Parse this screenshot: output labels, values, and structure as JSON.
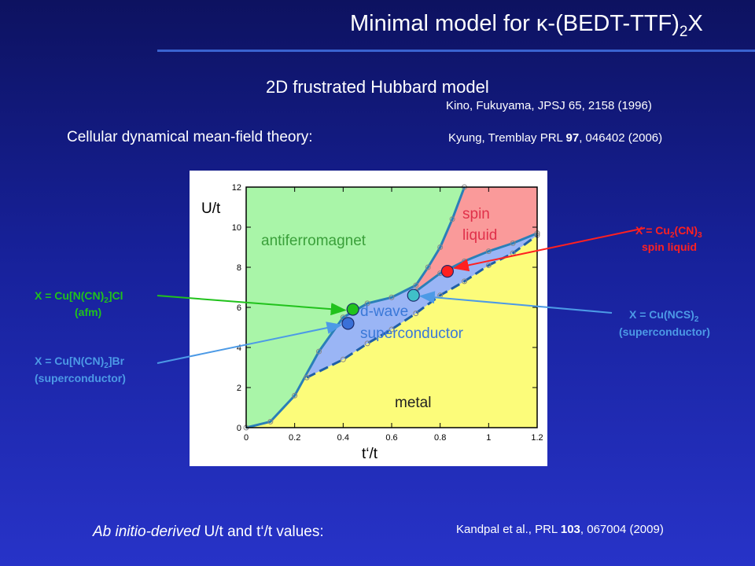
{
  "title": {
    "prefix": "Minimal model for ",
    "kappa": "κ",
    "mid": "-(BEDT-TTF)",
    "sub": "2",
    "suffix": "X"
  },
  "subtitle": "2D frustrated Hubbard model",
  "refs": {
    "kino": "Kino, Fukuyama, JPSJ 65, 2158 (1996)",
    "kyung_pre": "Kyung, Tremblay  PRL ",
    "kyung_vol": "97",
    "kyung_post": ", 046402 (2006)",
    "kandpal_pre": "Kandpal et al., PRL ",
    "kandpal_vol": "103",
    "kandpal_post": ", 067004 (2009)"
  },
  "cdmft_label": "Cellular dynamical mean-field theory:",
  "abinitio": {
    "italic": "Ab initio-derived",
    "rest": " U/t and t‘/t values:"
  },
  "chart_data": {
    "type": "phase-diagram",
    "xlabel": "t‘/t",
    "ylabel": "U/t",
    "xlim": [
      0,
      1.2
    ],
    "ylim": [
      0,
      12
    ],
    "x_ticks": [
      "0",
      "0.2",
      "0.4",
      "0.6",
      "0.8",
      "1",
      "1.2"
    ],
    "y_ticks": [
      "0",
      "2",
      "4",
      "6",
      "8",
      "10",
      "12"
    ],
    "regions": [
      {
        "name": "antiferromagnet",
        "color": "#a9f5a8"
      },
      {
        "name": "spin liquid",
        "color": "#fa9a9a"
      },
      {
        "name": "d-wave superconductor",
        "color": "#9ab5f5"
      },
      {
        "name": "metal",
        "color": "#fcfc7a"
      }
    ],
    "region_labels": {
      "afm": "antiferromagnet",
      "spin1": "spin",
      "spin2": "liquid",
      "dwave1": "d-wave",
      "dwave2": "superconductor",
      "metal": "metal"
    },
    "boundaries": {
      "afm_upper": [
        [
          0.0,
          0.0
        ],
        [
          0.1,
          0.3
        ],
        [
          0.2,
          1.6
        ],
        [
          0.3,
          3.8
        ],
        [
          0.4,
          5.5
        ],
        [
          0.5,
          6.2
        ],
        [
          0.6,
          6.5
        ],
        [
          0.7,
          7.1
        ],
        [
          0.75,
          8.0
        ],
        [
          0.8,
          9.0
        ],
        [
          0.85,
          10.4
        ],
        [
          0.9,
          12.0
        ]
      ],
      "sc_upper": [
        [
          0.7,
          6.8
        ],
        [
          0.8,
          7.7
        ],
        [
          0.9,
          8.3
        ],
        [
          1.0,
          8.8
        ],
        [
          1.1,
          9.2
        ],
        [
          1.2,
          9.7
        ]
      ],
      "sc_lower": [
        [
          0.25,
          2.5
        ],
        [
          0.4,
          3.4
        ],
        [
          0.5,
          4.2
        ],
        [
          0.6,
          4.9
        ],
        [
          0.7,
          5.7
        ],
        [
          0.8,
          6.6
        ],
        [
          0.9,
          7.3
        ],
        [
          1.0,
          8.1
        ],
        [
          1.1,
          8.7
        ],
        [
          1.2,
          9.6
        ]
      ]
    },
    "materials": [
      {
        "label": "X = Cu[N(CN)2]Cl",
        "note": "(afm)",
        "t": 0.44,
        "U": 5.9,
        "color": "#21c21c"
      },
      {
        "label": "X = Cu[N(CN)2]Br",
        "note": "(superconductor)",
        "t": 0.42,
        "U": 5.2,
        "color": "#4c9ae6"
      },
      {
        "label": "X = Cu(NCS)2",
        "note": "(superconductor)",
        "t": 0.69,
        "U": 6.6,
        "color": "#4c9ae6"
      },
      {
        "label": "X = Cu2(CN)3",
        "note": "spin liquid",
        "t": 0.83,
        "U": 7.8,
        "color": "#ff2020"
      }
    ]
  },
  "annotations": {
    "cl": {
      "main": "X = Cu[N(CN)",
      "sub": "2",
      "end": "]Cl",
      "note": "(afm)"
    },
    "br": {
      "main": "X = Cu[N(CN)",
      "sub": "2",
      "end": "]Br",
      "note": "(superconductor)"
    },
    "ncs": {
      "main": "X = Cu(NCS)",
      "sub": "2",
      "end": "",
      "note": "(superconductor)"
    },
    "cn": {
      "main": "X = Cu",
      "sub": "2",
      "mid": "(CN)",
      "sub2": "3",
      "note": "spin liquid"
    }
  },
  "colors": {
    "afm": "#a9f5a8",
    "spin_liquid": "#fa9a9a",
    "superconductor": "#9ab5f5",
    "metal": "#fcfc7a",
    "boundary": "#2a7fb8",
    "green": "#21c21c",
    "blue": "#4c9ae6",
    "red": "#ff2020"
  }
}
